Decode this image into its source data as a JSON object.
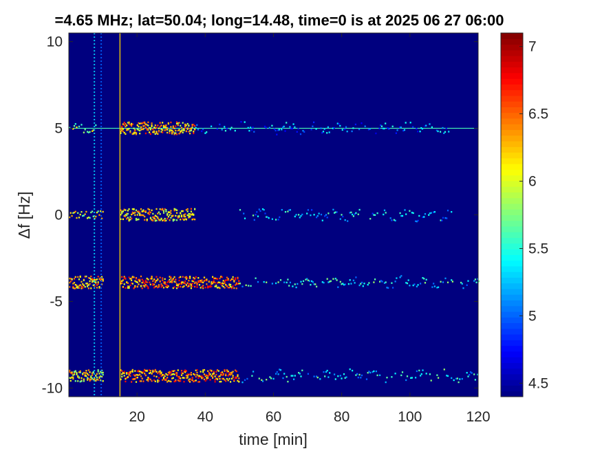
{
  "chart_data": {
    "type": "heatmap",
    "title": "=4.65 MHz;  lat=50.04; long=14.48, time=0 is at 2025 06 27 06:00",
    "xlabel": "time [min]",
    "ylabel": "Δf [Hz]",
    "xlim": [
      0,
      120
    ],
    "ylim": [
      -10.5,
      10.5
    ],
    "x_ticks": [
      20,
      40,
      60,
      80,
      100,
      120
    ],
    "x_tick_labels": [
      "20",
      "40",
      "60",
      "80",
      "100",
      "120"
    ],
    "y_ticks": [
      10,
      5,
      0,
      -5,
      -10
    ],
    "y_tick_labels": [
      "10",
      "5",
      "0",
      "-5",
      "-10"
    ],
    "colorbar": {
      "colormap": "jet",
      "range": [
        4.4,
        7.1
      ],
      "ticks": [
        7,
        6.5,
        6,
        5.5,
        5,
        4.5
      ],
      "tick_labels": [
        "7",
        "6.5",
        "6",
        "5.5",
        "5",
        "4.5"
      ]
    },
    "background_color": "#00007f",
    "series": [
      {
        "freq": 5,
        "segments": [
          {
            "t": [
              0,
              8
            ],
            "level": 5.9
          },
          {
            "t": [
              15,
              37
            ],
            "level": 6.3
          },
          {
            "t": [
              37,
              52
            ],
            "level": 5.2
          },
          {
            "t": [
              52,
              112
            ],
            "level": 5.1
          }
        ],
        "carrier_end": 120
      },
      {
        "freq": 0,
        "segments": [
          {
            "t": [
              0,
              10
            ],
            "level": 6.0
          },
          {
            "t": [
              15,
              37
            ],
            "level": 6.2
          },
          {
            "t": [
              50,
              112
            ],
            "level": 5.3
          }
        ]
      },
      {
        "freq": -3.9,
        "segments": [
          {
            "t": [
              0,
              10
            ],
            "level": 6.3
          },
          {
            "t": [
              15,
              50
            ],
            "level": 6.4
          },
          {
            "t": [
              50,
              120
            ],
            "level": 5.4
          }
        ]
      },
      {
        "freq": -9.3,
        "segments": [
          {
            "t": [
              0,
              10
            ],
            "level": 6.1
          },
          {
            "t": [
              15,
              50
            ],
            "level": 6.4
          },
          {
            "t": [
              50,
              120
            ],
            "level": 5.4
          }
        ]
      }
    ],
    "vertical_lines": [
      {
        "t": 7.5,
        "level": 5.3
      },
      {
        "t": 9.5,
        "level": 5.0
      },
      {
        "t": 15,
        "level": 6.2
      }
    ]
  }
}
